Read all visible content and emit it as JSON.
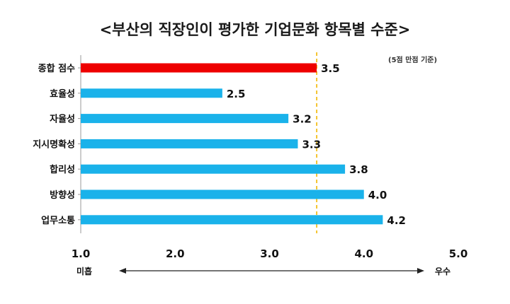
{
  "chart_data": {
    "type": "bar",
    "orientation": "horizontal",
    "title": "<부산의 직장인이 평가한 기업문화 항목별 수준>",
    "note": "(5점 만점 기준)",
    "categories": [
      "종합 점수",
      "효율성",
      "자율성",
      "지시명확성",
      "합리성",
      "방향성",
      "업무소통"
    ],
    "values": [
      3.5,
      2.5,
      3.2,
      3.3,
      3.8,
      4.0,
      4.2
    ],
    "value_labels": [
      "3.5",
      "2.5",
      "3.2",
      "3.3",
      "3.8",
      "4.0",
      "4.2"
    ],
    "xlim": [
      1.0,
      5.0
    ],
    "xticks": [
      "1.0",
      "2.0",
      "3.0",
      "4.0",
      "5.0"
    ],
    "reference_line": 3.5,
    "scale_low_label": "미흡",
    "scale_high_label": "우수",
    "colors": {
      "highlight": "#ee0000",
      "highlight_label": "#c00000",
      "bar": "#1ab2ea",
      "reference_line": "#f2b700",
      "axis": "#999999"
    }
  }
}
